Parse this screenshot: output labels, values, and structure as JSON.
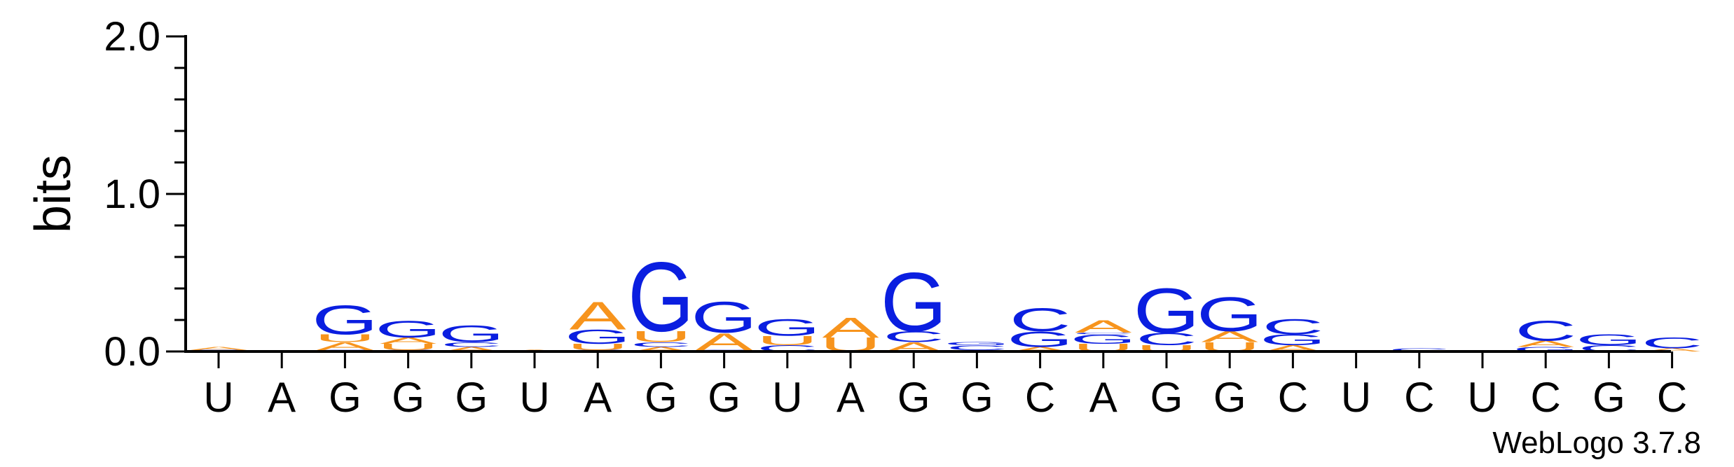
{
  "chart_data": {
    "type": "sequence-logo",
    "ylabel": "bits",
    "ylim": [
      0,
      2
    ],
    "yticks": [
      "0.0",
      "1.0",
      "2.0"
    ],
    "colors": {
      "A": "#f7941d",
      "U": "#f7941d",
      "G": "#0a1ee0",
      "C": "#0a1ee0"
    },
    "credit": "WebLogo 3.7.8",
    "positions": [
      {
        "label": "U",
        "stack": [
          [
            "G",
            0.01
          ],
          [
            "A",
            0.02
          ]
        ]
      },
      {
        "label": "A",
        "stack": []
      },
      {
        "label": "G",
        "stack": [
          [
            "C",
            0.01
          ],
          [
            "A",
            0.05
          ],
          [
            "U",
            0.05
          ],
          [
            "G",
            0.19
          ]
        ]
      },
      {
        "label": "G",
        "stack": [
          [
            "C",
            0.01
          ],
          [
            "U",
            0.04
          ],
          [
            "A",
            0.04
          ],
          [
            "G",
            0.11
          ]
        ]
      },
      {
        "label": "G",
        "stack": [
          [
            "A",
            0.03
          ],
          [
            "C",
            0.03
          ],
          [
            "G",
            0.11
          ]
        ]
      },
      {
        "label": "U",
        "stack": [
          [
            "A",
            0.01
          ]
        ]
      },
      {
        "label": "A",
        "stack": [
          [
            "C",
            0.01
          ],
          [
            "U",
            0.04
          ],
          [
            "G",
            0.09
          ],
          [
            "A",
            0.18
          ]
        ]
      },
      {
        "label": "G",
        "stack": [
          [
            "A",
            0.03
          ],
          [
            "C",
            0.03
          ],
          [
            "U",
            0.07
          ],
          [
            "G",
            0.45
          ]
        ]
      },
      {
        "label": "G",
        "stack": [
          [
            "C",
            0.01
          ],
          [
            "A",
            0.11
          ],
          [
            "G",
            0.2
          ]
        ]
      },
      {
        "label": "U",
        "stack": [
          [
            "C",
            0.04
          ],
          [
            "U",
            0.06
          ],
          [
            "G",
            0.11
          ]
        ]
      },
      {
        "label": "A",
        "stack": [
          [
            "U",
            0.09
          ],
          [
            "A",
            0.13
          ]
        ]
      },
      {
        "label": "G",
        "stack": [
          [
            "A",
            0.06
          ],
          [
            "C",
            0.07
          ],
          [
            "G",
            0.38
          ]
        ]
      },
      {
        "label": "G",
        "stack": [
          [
            "A",
            0.01
          ],
          [
            "C",
            0.03
          ],
          [
            "G",
            0.02
          ]
        ]
      },
      {
        "label": "C",
        "stack": [
          [
            "A",
            0.03
          ],
          [
            "G",
            0.1
          ],
          [
            "C",
            0.15
          ]
        ]
      },
      {
        "label": "A",
        "stack": [
          [
            "U",
            0.05
          ],
          [
            "G",
            0.06
          ],
          [
            "C",
            0.01
          ],
          [
            "A",
            0.08
          ]
        ]
      },
      {
        "label": "G",
        "stack": [
          [
            "U",
            0.04
          ],
          [
            "C",
            0.08
          ],
          [
            "G",
            0.29
          ]
        ]
      },
      {
        "label": "G",
        "stack": [
          [
            "U",
            0.06
          ],
          [
            "A",
            0.07
          ],
          [
            "G",
            0.22
          ]
        ]
      },
      {
        "label": "C",
        "stack": [
          [
            "A",
            0.04
          ],
          [
            "G",
            0.07
          ],
          [
            "C",
            0.1
          ]
        ]
      },
      {
        "label": "U",
        "stack": []
      },
      {
        "label": "C",
        "stack": [
          [
            "C",
            0.02
          ]
        ]
      },
      {
        "label": "U",
        "stack": []
      },
      {
        "label": "C",
        "stack": [
          [
            "G",
            0.03
          ],
          [
            "A",
            0.04
          ],
          [
            "C",
            0.13
          ]
        ]
      },
      {
        "label": "G",
        "stack": [
          [
            "C",
            0.04
          ],
          [
            "G",
            0.07
          ]
        ]
      },
      {
        "label": "C",
        "stack": [
          [
            "A",
            0.02
          ],
          [
            "C",
            0.07
          ]
        ]
      }
    ]
  }
}
